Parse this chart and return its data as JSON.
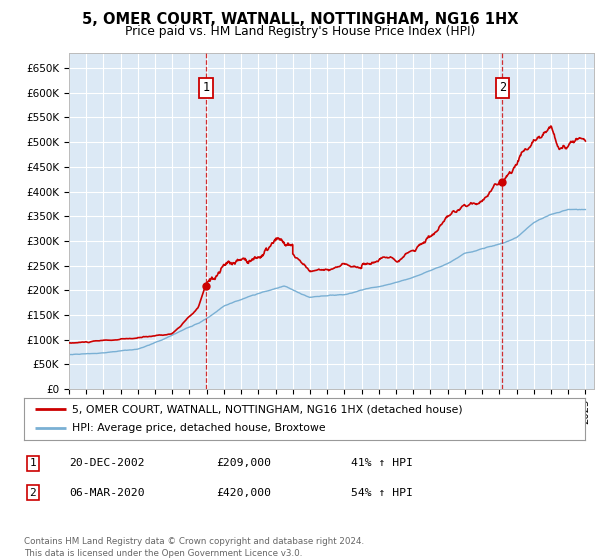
{
  "title": "5, OMER COURT, WATNALL, NOTTINGHAM, NG16 1HX",
  "subtitle": "Price paid vs. HM Land Registry's House Price Index (HPI)",
  "ylim": [
    0,
    680000
  ],
  "xlim_start": 1995.0,
  "xlim_end": 2025.5,
  "background_color": "#dce9f5",
  "grid_color": "#ffffff",
  "red_line_color": "#cc0000",
  "blue_line_color": "#7ab0d4",
  "t1_x": 2002.97,
  "t1_price": 209000,
  "t2_x": 2020.18,
  "t2_price": 420000,
  "legend_label1": "5, OMER COURT, WATNALL, NOTTINGHAM, NG16 1HX (detached house)",
  "legend_label2": "HPI: Average price, detached house, Broxtowe",
  "note1_label": "1",
  "note1_date": "20-DEC-2002",
  "note1_price": "£209,000",
  "note1_hpi": "41% ↑ HPI",
  "note2_label": "2",
  "note2_date": "06-MAR-2020",
  "note2_price": "£420,000",
  "note2_hpi": "54% ↑ HPI",
  "footer": "Contains HM Land Registry data © Crown copyright and database right 2024.\nThis data is licensed under the Open Government Licence v3.0."
}
